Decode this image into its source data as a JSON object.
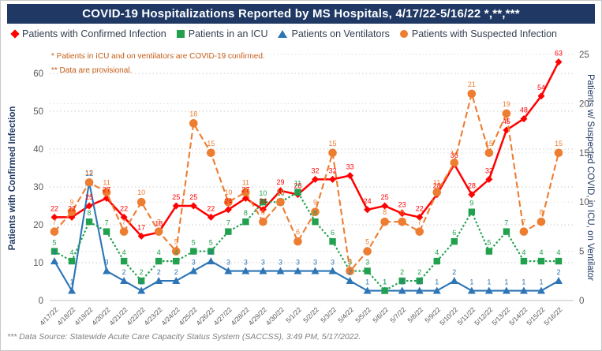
{
  "title": "COVID-19 Hospitalizations Reported by MS Hospitals, 4/17/22-5/16/22 *,**,***",
  "title_bar_color": "#1F3864",
  "notes": [
    "* Patients in ICU and on ventilators are COVID-19 confirmed.",
    "** Data are provisional."
  ],
  "footer": "*** Data Source: Statewide Acute Care Capacity Status System (SACCSS), 3:49 PM, 5/17/2022.",
  "legend": [
    {
      "label": "Patients with Confirmed Infection",
      "color": "#FF0000",
      "marker": "diamond"
    },
    {
      "label": "Patients in an ICU",
      "color": "#21A04D",
      "marker": "square"
    },
    {
      "label": "Patients on Ventilators",
      "color": "#2E75B6",
      "marker": "triangle"
    },
    {
      "label": "Patients with Suspected Infection",
      "color": "#ED7D31",
      "marker": "circle"
    }
  ],
  "left_axis": {
    "title": "Patients with Confirmed Infection",
    "ticks": [
      0,
      10,
      20,
      30,
      40,
      50,
      60
    ],
    "range": [
      0,
      60
    ]
  },
  "right_axis": {
    "title": "Patients w/ Suspected COVID, in ICU, on Ventilator",
    "ticks": [
      0,
      5,
      10,
      15,
      20,
      25
    ],
    "range": [
      0,
      25
    ]
  },
  "chart_data": {
    "type": "line",
    "x": [
      "4/17/22",
      "4/18/22",
      "4/19/22",
      "4/20/22",
      "4/21/22",
      "4/22/22",
      "4/23/22",
      "4/24/22",
      "4/25/22",
      "4/26/22",
      "4/27/22",
      "4/28/22",
      "4/29/22",
      "4/30/22",
      "5/1/22",
      "5/2/22",
      "5/3/22",
      "5/4/22",
      "5/5/22",
      "5/6/22",
      "5/7/22",
      "5/8/22",
      "5/9/22",
      "5/10/22",
      "5/11/22",
      "5/12/22",
      "5/13/22",
      "5/14/22",
      "5/15/22",
      "5/16/22"
    ],
    "ylim_left": [
      0,
      60
    ],
    "ylim_right": [
      0,
      25
    ],
    "grid": "dotted",
    "legend_position": "top",
    "series": [
      {
        "name": "Patients with Confirmed Infection",
        "axis": "left",
        "color": "#FF0000",
        "marker": "diamond",
        "line_style": "solid",
        "values": [
          22,
          22,
          25,
          27,
          22,
          17,
          18,
          25,
          25,
          22,
          24,
          27,
          24,
          29,
          28,
          32,
          32,
          33,
          24,
          25,
          23,
          22,
          28,
          36,
          28,
          32,
          45,
          48,
          54,
          63
        ]
      },
      {
        "name": "Patients in an ICU",
        "axis": "right",
        "color": "#21A04D",
        "marker": "square",
        "line_style": "dotted",
        "values": [
          5,
          4,
          8,
          7,
          4,
          2,
          4,
          4,
          5,
          5,
          7,
          8,
          10,
          10,
          11,
          8,
          6,
          3,
          3,
          1,
          2,
          2,
          4,
          6,
          9,
          5,
          7,
          4,
          4,
          4
        ]
      },
      {
        "name": "Patients on Ventilators",
        "axis": "right",
        "color": "#2E75B6",
        "marker": "triangle",
        "line_style": "solid",
        "values": [
          4,
          1,
          12,
          3,
          2,
          1,
          2,
          2,
          3,
          4,
          3,
          3,
          3,
          3,
          3,
          3,
          3,
          2,
          1,
          1,
          1,
          1,
          1,
          2,
          1,
          1,
          1,
          1,
          1,
          2
        ]
      },
      {
        "name": "Patients with Suspected Infection",
        "axis": "right",
        "color": "#ED7D31",
        "marker": "circle",
        "line_style": "dashed",
        "values": [
          7,
          9,
          12,
          11,
          7,
          10,
          7,
          5,
          18,
          15,
          10,
          11,
          8,
          10,
          6,
          9,
          15,
          3,
          5,
          8,
          8,
          7,
          11,
          14,
          21,
          15,
          19,
          7,
          8,
          15
        ]
      }
    ],
    "draw_order": [
      0,
      2,
      1,
      3
    ]
  }
}
